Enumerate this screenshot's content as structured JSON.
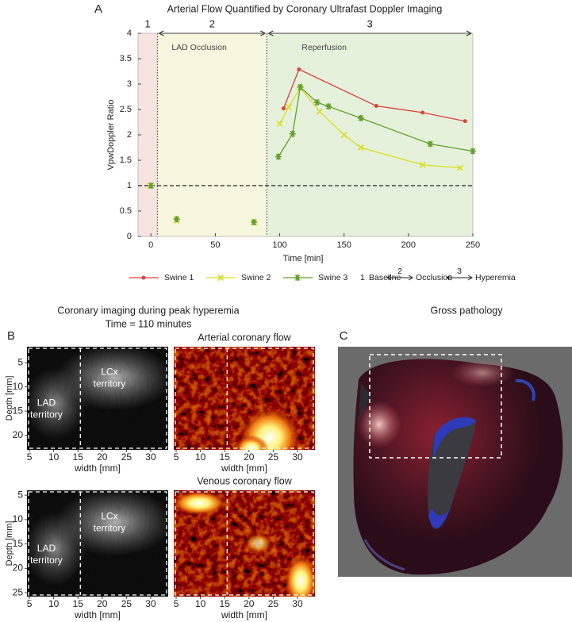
{
  "chart_data": {
    "type": "line",
    "panel_label": "A",
    "title": "Arterial Flow Quantified by Coronary  Ultrafast Doppler Imaging",
    "xlabel": "Time [min]",
    "ylabel": "VpwDoppler Ratio",
    "xlim": [
      -10,
      250
    ],
    "ylim": [
      0,
      4
    ],
    "xticks": [
      0,
      50,
      100,
      150,
      200,
      250
    ],
    "yticks": [
      0,
      0.5,
      1,
      1.5,
      2,
      2.5,
      3,
      3.5,
      4
    ],
    "reference_line": 1,
    "phases": [
      {
        "number": "1",
        "start": -10,
        "end": 5,
        "color": "#f7e3df"
      },
      {
        "number": "2",
        "label": "LAD Occlusion",
        "start": 5,
        "end": 90,
        "color": "#f7f7df"
      },
      {
        "number": "3",
        "label": "Reperfusion",
        "start": 90,
        "end": 250,
        "color": "#e6f1dc"
      }
    ],
    "series": [
      {
        "name": "Swine 1",
        "color": "#d8443c",
        "marker": "dot",
        "x": [
          0,
          null,
          103,
          115,
          175,
          211,
          244
        ],
        "values": [
          1,
          null,
          2.52,
          3.29,
          2.57,
          2.44,
          2.27
        ]
      },
      {
        "name": "Swine 2",
        "color": "#d7df1f",
        "marker": "x",
        "x": [
          0,
          null,
          20,
          null,
          80,
          null,
          100,
          107,
          116,
          131,
          150,
          163,
          211,
          240
        ],
        "values": [
          1,
          null,
          0.31,
          null,
          0.27,
          null,
          2.22,
          2.55,
          2.93,
          2.46,
          2.0,
          1.75,
          1.41,
          1.35
        ]
      },
      {
        "name": "Swine 3",
        "color": "#64a02c",
        "marker": "star",
        "x": [
          0,
          null,
          20,
          null,
          80,
          null,
          99,
          110,
          116,
          129,
          138,
          163,
          217,
          250
        ],
        "values": [
          1,
          null,
          0.34,
          null,
          0.28,
          null,
          1.57,
          2.02,
          2.94,
          2.64,
          2.56,
          2.33,
          1.82,
          1.68
        ]
      }
    ],
    "legend_notes": [
      {
        "number": "1",
        "label": "Baseline"
      },
      {
        "number": "2",
        "label": "Occlusion"
      },
      {
        "number": "3",
        "label": "Hyperemia"
      }
    ]
  },
  "panel_b": {
    "label": "B",
    "heading": "Coronary imaging during peak hyperemia",
    "subheading": "Time = 110 minutes",
    "xlabel": "width [mm]",
    "ylabel": "Depth [mm]",
    "images": [
      {
        "colormap": "gray",
        "xlim": [
          4.5,
          33.6
        ],
        "ylim": [
          1.7,
          23
        ],
        "xticks": [
          5,
          10,
          15,
          20,
          25,
          30
        ],
        "yticks": [
          5,
          10,
          15,
          20
        ],
        "divider": 15.5,
        "regions": [
          [
            "LCx",
            "territory"
          ],
          [
            "LAD",
            "territory"
          ]
        ]
      },
      {
        "colormap": "hot",
        "title": "Arterial coronary flow",
        "xlim": [
          4.5,
          33.6
        ],
        "ylim": [
          1.7,
          23
        ],
        "xticks": [
          5,
          10,
          15,
          20,
          25,
          30
        ],
        "divider": 15.5
      },
      {
        "colormap": "gray",
        "xlim": [
          4.5,
          33.6
        ],
        "ylim": [
          4,
          25.8
        ],
        "xticks": [
          5,
          10,
          15,
          20,
          25,
          30
        ],
        "yticks": [
          5,
          10,
          15,
          20,
          25
        ],
        "divider": 15.5,
        "regions": [
          [
            "LCx",
            "territory"
          ],
          [
            "LAD",
            "territory"
          ]
        ]
      },
      {
        "colormap": "hot",
        "title": "Venous coronary flow",
        "xlim": [
          4.5,
          33.6
        ],
        "ylim": [
          4,
          25.8
        ],
        "xticks": [
          5,
          10,
          15,
          20,
          25,
          30
        ],
        "divider": 15.5
      }
    ]
  },
  "panel_c": {
    "label": "C",
    "heading": "Gross pathology"
  }
}
